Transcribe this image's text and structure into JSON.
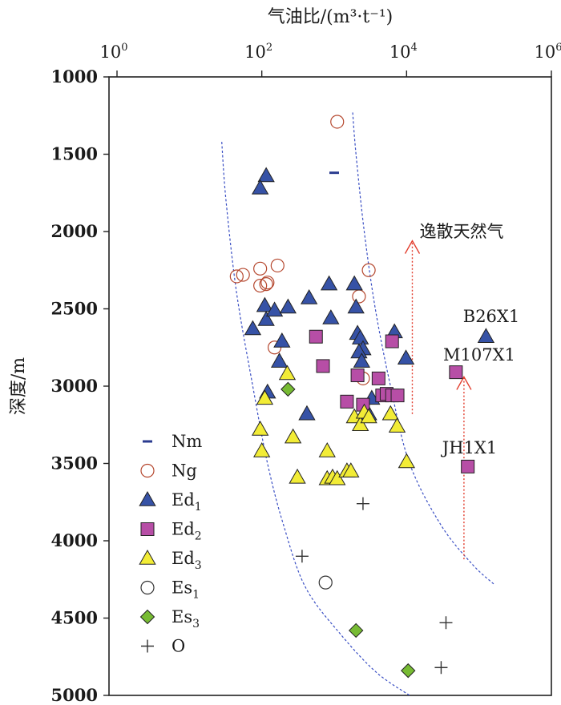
{
  "chart_data": {
    "type": "scatter",
    "x_axis": {
      "label": "气油比/(m³·t⁻¹)",
      "position": "top",
      "scale": "log",
      "range": [
        1,
        1000000
      ],
      "ticks": [
        {
          "value": 1,
          "base": "10",
          "exp": "0"
        },
        {
          "value": 100,
          "base": "10",
          "exp": "2"
        },
        {
          "value": 10000,
          "base": "10",
          "exp": "4"
        },
        {
          "value": 1000000,
          "base": "10",
          "exp": "6"
        }
      ]
    },
    "y_axis": {
      "label": "深度/m",
      "reversed": true,
      "range": [
        1000,
        5000
      ],
      "ticks": [
        "1000",
        "1500",
        "2000",
        "2500",
        "3000",
        "3500",
        "4000",
        "4500",
        "5000"
      ]
    },
    "grid": false,
    "legend_position": "bottom-left",
    "series": [
      {
        "name": "Nm",
        "sub": "",
        "marker": "dash",
        "color": "#2a3b8f",
        "points": [
          [
            1000,
            1620
          ]
        ]
      },
      {
        "name": "Ng",
        "sub": "",
        "marker": "circle-open",
        "color": "#b5472e",
        "points": [
          [
            1100,
            1290
          ],
          [
            45,
            2290
          ],
          [
            55,
            2280
          ],
          [
            95,
            2240
          ],
          [
            95,
            2350
          ],
          [
            115,
            2340
          ],
          [
            120,
            2330
          ],
          [
            165,
            2220
          ],
          [
            150,
            2750
          ],
          [
            2200,
            2420
          ],
          [
            3000,
            2250
          ],
          [
            2500,
            2950
          ]
        ]
      },
      {
        "name": "Ed",
        "sub": "1",
        "marker": "triangle",
        "color": "#3652a6",
        "points": [
          [
            115,
            1640
          ],
          [
            95,
            1720
          ],
          [
            75,
            2630
          ],
          [
            110,
            2480
          ],
          [
            115,
            2570
          ],
          [
            150,
            2510
          ],
          [
            230,
            2490
          ],
          [
            190,
            2710
          ],
          [
            175,
            2840
          ],
          [
            120,
            3040
          ],
          [
            450,
            2430
          ],
          [
            850,
            2340
          ],
          [
            900,
            2560
          ],
          [
            1900,
            2340
          ],
          [
            2000,
            2490
          ],
          [
            2100,
            2660
          ],
          [
            2300,
            2690
          ],
          [
            2500,
            2760
          ],
          [
            2200,
            2780
          ],
          [
            2400,
            2840
          ],
          [
            6800,
            2650
          ],
          [
            9800,
            2820
          ],
          [
            420,
            3180
          ],
          [
            3000,
            3180
          ],
          [
            3300,
            3080
          ],
          [
            125000,
            2680
          ]
        ]
      },
      {
        "name": "Ed",
        "sub": "2",
        "marker": "square",
        "color": "#b74ea6",
        "points": [
          [
            560,
            2680
          ],
          [
            700,
            2870
          ],
          [
            1500,
            3100
          ],
          [
            2100,
            2930
          ],
          [
            2500,
            3120
          ],
          [
            4100,
            2950
          ],
          [
            4600,
            3060
          ],
          [
            5300,
            3050
          ],
          [
            6300,
            2710
          ],
          [
            6300,
            3060
          ],
          [
            7500,
            3060
          ],
          [
            48000,
            2910
          ],
          [
            70000,
            3520
          ]
        ]
      },
      {
        "name": "Ed",
        "sub": "3",
        "marker": "triangle",
        "color": "#f2ec36",
        "points": [
          [
            225,
            2920
          ],
          [
            95,
            3280
          ],
          [
            110,
            3080
          ],
          [
            100,
            3420
          ],
          [
            270,
            3330
          ],
          [
            310,
            3590
          ],
          [
            800,
            3420
          ],
          [
            800,
            3600
          ],
          [
            950,
            3590
          ],
          [
            1100,
            3600
          ],
          [
            1500,
            3550
          ],
          [
            1700,
            3550
          ],
          [
            1900,
            3200
          ],
          [
            2300,
            3250
          ],
          [
            2600,
            3170
          ],
          [
            3000,
            3200
          ],
          [
            6000,
            3180
          ],
          [
            7400,
            3260
          ],
          [
            10000,
            3490
          ]
        ]
      },
      {
        "name": "Es",
        "sub": "1",
        "marker": "circle-open",
        "color": "#333333",
        "points": [
          [
            760,
            4270
          ]
        ]
      },
      {
        "name": "Es",
        "sub": "3",
        "marker": "diamond",
        "color": "#77bb33",
        "points": [
          [
            230,
            3020
          ],
          [
            2000,
            4580
          ],
          [
            10500,
            4840
          ]
        ]
      },
      {
        "name": "O",
        "sub": "",
        "marker": "plus",
        "color": "#333333",
        "points": [
          [
            2500,
            3760
          ],
          [
            360,
            4100
          ],
          [
            35000,
            4530
          ],
          [
            30000,
            4820
          ]
        ]
      }
    ],
    "annotations": [
      {
        "text": "逸散天然气"
      },
      {
        "text": "B26X1"
      },
      {
        "text": "M107X1"
      },
      {
        "text": "JH1X1"
      }
    ],
    "envelope_curves": [
      {
        "style": "dashed",
        "color": "#3a4fc4",
        "points": [
          [
            28,
            1420
          ],
          [
            32,
            1800
          ],
          [
            45,
            2400
          ],
          [
            75,
            3000
          ],
          [
            120,
            3500
          ],
          [
            200,
            3900
          ],
          [
            400,
            4300
          ],
          [
            1200,
            4600
          ],
          [
            3800,
            4850
          ],
          [
            11000,
            5000
          ]
        ]
      },
      {
        "style": "dashed",
        "color": "#3a4fc4",
        "points": [
          [
            1800,
            1230
          ],
          [
            2000,
            1500
          ],
          [
            2600,
            2000
          ],
          [
            3700,
            2500
          ],
          [
            6000,
            3000
          ],
          [
            11000,
            3500
          ],
          [
            30000,
            3900
          ],
          [
            80000,
            4150
          ],
          [
            160000,
            4280
          ]
        ]
      }
    ],
    "arrows": [
      {
        "style": "dotted",
        "color": "#e23c2c",
        "x": 12000,
        "y_from": 3180,
        "y_to": 2060
      },
      {
        "style": "dotted",
        "color": "#e23c2c",
        "x": 62000,
        "y_from": 4120,
        "y_to": 2940
      }
    ]
  }
}
